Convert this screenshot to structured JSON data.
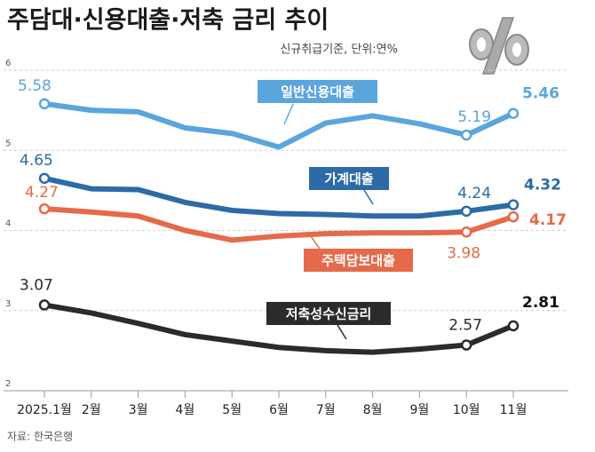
{
  "chart_data": {
    "type": "line",
    "title": "주담대·신용대출·저축 금리 추이",
    "subtitle": "신규취급기준, 단위:연%",
    "source": "자료: 한국은행",
    "categories": [
      "2025.1월",
      "2월",
      "3월",
      "4월",
      "5월",
      "6월",
      "7월",
      "8월",
      "9월",
      "10월",
      "11월"
    ],
    "ylim": [
      2,
      6
    ],
    "yticks": [
      2,
      3,
      4,
      5,
      6
    ],
    "grid": true,
    "series": [
      {
        "name": "일반신용대출",
        "color": "#5aa5dc",
        "values": [
          5.58,
          5.5,
          5.48,
          5.28,
          5.21,
          5.04,
          5.34,
          5.43,
          5.33,
          5.19,
          5.46
        ]
      },
      {
        "name": "가계대출",
        "color": "#2c6aa8",
        "values": [
          4.65,
          4.52,
          4.51,
          4.35,
          4.25,
          4.21,
          4.2,
          4.18,
          4.18,
          4.24,
          4.32
        ]
      },
      {
        "name": "주택담보대출",
        "color": "#e46a4a",
        "values": [
          4.27,
          4.23,
          4.18,
          4.0,
          3.88,
          3.93,
          3.96,
          3.97,
          3.97,
          3.98,
          4.17
        ]
      },
      {
        "name": "저축성수신금리",
        "color": "#2b2b2b",
        "values": [
          3.07,
          2.97,
          2.84,
          2.7,
          2.62,
          2.54,
          2.5,
          2.48,
          2.52,
          2.57,
          2.81
        ]
      }
    ]
  }
}
